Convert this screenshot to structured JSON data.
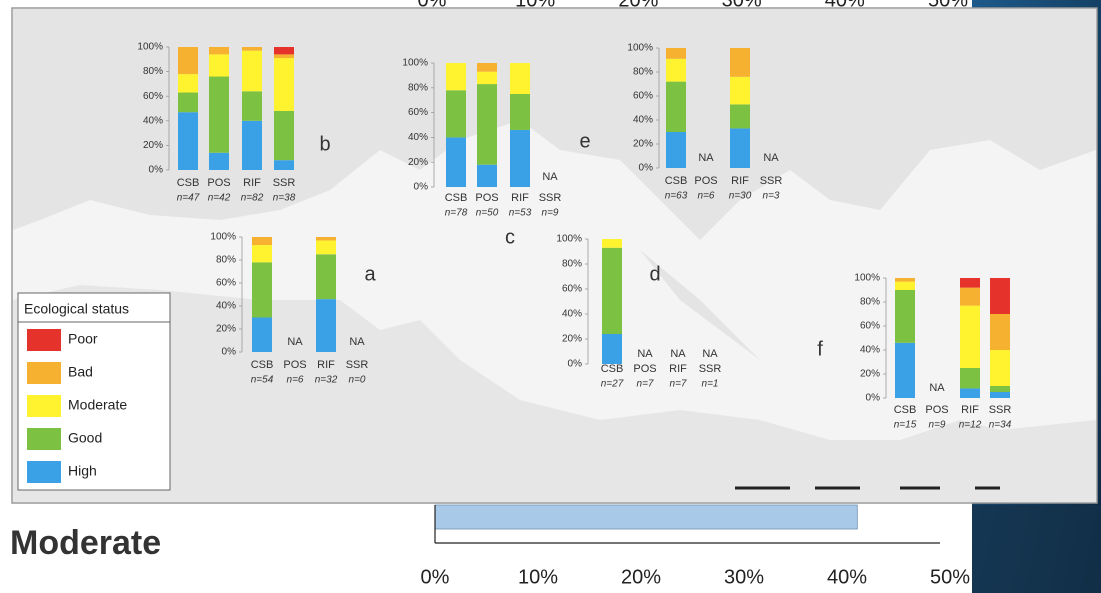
{
  "legend": {
    "title": "Ecological status"
  },
  "chart_data": [
    {
      "type": "stacked-bar",
      "label": "a",
      "categories": [
        "CSB",
        "POS",
        "RIF",
        "SSR"
      ],
      "n_labels": [
        "n=54",
        "n=6",
        "n=32",
        "n=0"
      ],
      "na_labels": [
        null,
        "NA",
        null,
        "NA"
      ],
      "series": [
        {
          "name": "High",
          "color": "#3ba1e6",
          "values": [
            30,
            null,
            46,
            null
          ]
        },
        {
          "name": "Good",
          "color": "#7dc143",
          "values": [
            48,
            null,
            39,
            null
          ]
        },
        {
          "name": "Moderate",
          "color": "#fff22f",
          "values": [
            15,
            null,
            12,
            null
          ]
        },
        {
          "name": "Bad",
          "color": "#f6b131",
          "values": [
            7,
            null,
            3,
            null
          ]
        },
        {
          "name": "Poor",
          "color": "#e5322b",
          "values": [
            0,
            null,
            0,
            null
          ]
        }
      ],
      "ylim": [
        0,
        100
      ],
      "yticks": [
        {
          "value": 0,
          "label": "0%"
        },
        {
          "value": 20,
          "label": "20%"
        },
        {
          "value": 40,
          "label": "40%"
        },
        {
          "value": 60,
          "label": "60%"
        },
        {
          "value": 80,
          "label": "80%"
        },
        {
          "value": 100,
          "label": "100%"
        }
      ]
    },
    {
      "type": "stacked-bar",
      "label": "b",
      "categories": [
        "CSB",
        "POS",
        "RIF",
        "SSR"
      ],
      "n_labels": [
        "n=47",
        "n=42",
        "n=82",
        "n=38"
      ],
      "na_labels": [
        null,
        null,
        null,
        null
      ],
      "series": [
        {
          "name": "High",
          "color": "#3ba1e6",
          "values": [
            47,
            14,
            40,
            8
          ]
        },
        {
          "name": "Good",
          "color": "#7dc143",
          "values": [
            16,
            62,
            24,
            40
          ]
        },
        {
          "name": "Moderate",
          "color": "#fff22f",
          "values": [
            15,
            18,
            33,
            43
          ]
        },
        {
          "name": "Bad",
          "color": "#f6b131",
          "values": [
            22,
            6,
            3,
            3
          ]
        },
        {
          "name": "Poor",
          "color": "#e5322b",
          "values": [
            0,
            0,
            0,
            6
          ]
        }
      ],
      "ylim": [
        0,
        100
      ],
      "yticks": [
        {
          "value": 0,
          "label": "0%"
        },
        {
          "value": 20,
          "label": "20%"
        },
        {
          "value": 40,
          "label": "40%"
        },
        {
          "value": 60,
          "label": "60%"
        },
        {
          "value": 80,
          "label": "80%"
        },
        {
          "value": 100,
          "label": "100%"
        }
      ]
    },
    {
      "type": "stacked-bar",
      "label": "c",
      "categories": [
        "CSB",
        "POS",
        "RIF",
        "SSR"
      ],
      "n_labels": [
        "n=78",
        "n=50",
        "n=53",
        "n=9"
      ],
      "na_labels": [
        null,
        null,
        null,
        "NA"
      ],
      "series": [
        {
          "name": "High",
          "color": "#3ba1e6",
          "values": [
            40,
            18,
            46,
            null
          ]
        },
        {
          "name": "Good",
          "color": "#7dc143",
          "values": [
            38,
            65,
            29,
            null
          ]
        },
        {
          "name": "Moderate",
          "color": "#fff22f",
          "values": [
            22,
            10,
            25,
            null
          ]
        },
        {
          "name": "Bad",
          "color": "#f6b131",
          "values": [
            0,
            7,
            0,
            null
          ]
        },
        {
          "name": "Poor",
          "color": "#e5322b",
          "values": [
            0,
            0,
            0,
            null
          ]
        }
      ],
      "ylim": [
        0,
        100
      ],
      "yticks": [
        {
          "value": 0,
          "label": "0%"
        },
        {
          "value": 20,
          "label": "20%"
        },
        {
          "value": 40,
          "label": "40%"
        },
        {
          "value": 60,
          "label": "60%"
        },
        {
          "value": 80,
          "label": "80%"
        },
        {
          "value": 100,
          "label": "100%"
        }
      ]
    },
    {
      "type": "stacked-bar",
      "label": "d",
      "categories": [
        "CSB",
        "POS",
        "RIF",
        "SSR"
      ],
      "n_labels": [
        "n=27",
        "n=7",
        "n=7",
        "n=1"
      ],
      "na_labels": [
        null,
        "NA",
        "NA",
        "NA"
      ],
      "series": [
        {
          "name": "High",
          "color": "#3ba1e6",
          "values": [
            24,
            null,
            null,
            null
          ]
        },
        {
          "name": "Good",
          "color": "#7dc143",
          "values": [
            69,
            null,
            null,
            null
          ]
        },
        {
          "name": "Moderate",
          "color": "#fff22f",
          "values": [
            7,
            null,
            null,
            null
          ]
        },
        {
          "name": "Bad",
          "color": "#f6b131",
          "values": [
            0,
            null,
            null,
            null
          ]
        },
        {
          "name": "Poor",
          "color": "#e5322b",
          "values": [
            0,
            null,
            null,
            null
          ]
        }
      ],
      "ylim": [
        0,
        100
      ],
      "yticks": [
        {
          "value": 0,
          "label": "0%"
        },
        {
          "value": 20,
          "label": "20%"
        },
        {
          "value": 40,
          "label": "40%"
        },
        {
          "value": 60,
          "label": "60%"
        },
        {
          "value": 80,
          "label": "80%"
        },
        {
          "value": 100,
          "label": "100%"
        }
      ]
    },
    {
      "type": "stacked-bar",
      "label": "e",
      "categories": [
        "CSB",
        "POS",
        "RIF",
        "SSR"
      ],
      "n_labels": [
        "n=63",
        "n=6",
        "n=30",
        "n=3"
      ],
      "na_labels": [
        null,
        "NA",
        null,
        "NA"
      ],
      "series": [
        {
          "name": "High",
          "color": "#3ba1e6",
          "values": [
            30,
            null,
            33,
            null
          ]
        },
        {
          "name": "Good",
          "color": "#7dc143",
          "values": [
            42,
            null,
            20,
            null
          ]
        },
        {
          "name": "Moderate",
          "color": "#fff22f",
          "values": [
            19,
            null,
            23,
            null
          ]
        },
        {
          "name": "Bad",
          "color": "#f6b131",
          "values": [
            9,
            null,
            24,
            null
          ]
        },
        {
          "name": "Poor",
          "color": "#e5322b",
          "values": [
            0,
            null,
            0,
            null
          ]
        }
      ],
      "ylim": [
        0,
        100
      ],
      "yticks": [
        {
          "value": 0,
          "label": "0%"
        },
        {
          "value": 20,
          "label": "20%"
        },
        {
          "value": 40,
          "label": "40%"
        },
        {
          "value": 60,
          "label": "60%"
        },
        {
          "value": 80,
          "label": "80%"
        },
        {
          "value": 100,
          "label": "100%"
        }
      ]
    },
    {
      "type": "stacked-bar",
      "label": "f",
      "categories": [
        "CSB",
        "POS",
        "RIF",
        "SSR"
      ],
      "n_labels": [
        "n=15",
        "n=9",
        "n=12",
        "n=34"
      ],
      "na_labels": [
        null,
        "NA",
        null,
        null
      ],
      "series": [
        {
          "name": "High",
          "color": "#3ba1e6",
          "values": [
            46,
            null,
            8,
            5
          ]
        },
        {
          "name": "Good",
          "color": "#7dc143",
          "values": [
            44,
            null,
            17,
            5
          ]
        },
        {
          "name": "Moderate",
          "color": "#fff22f",
          "values": [
            7,
            null,
            52,
            30
          ]
        },
        {
          "name": "Bad",
          "color": "#f6b131",
          "values": [
            3,
            null,
            15,
            30
          ]
        },
        {
          "name": "Poor",
          "color": "#e5322b",
          "values": [
            0,
            null,
            8,
            30
          ]
        }
      ],
      "ylim": [
        0,
        100
      ],
      "yticks": [
        {
          "value": 0,
          "label": "0%"
        },
        {
          "value": 20,
          "label": "20%"
        },
        {
          "value": 40,
          "label": "40%"
        },
        {
          "value": 60,
          "label": "60%"
        },
        {
          "value": 80,
          "label": "80%"
        },
        {
          "value": 100,
          "label": "100%"
        }
      ]
    },
    {
      "type": "axis",
      "xlim": [
        0,
        50
      ],
      "xticks": [
        {
          "value": 0,
          "label": "0%"
        },
        {
          "value": 10,
          "label": "10%"
        },
        {
          "value": 20,
          "label": "20%"
        },
        {
          "value": 30,
          "label": "30%"
        },
        {
          "value": 40,
          "label": "40%"
        },
        {
          "value": 50,
          "label": "50%"
        }
      ]
    },
    {
      "type": "hbar",
      "categories": [
        "Moderate"
      ],
      "values": [
        41
      ],
      "color": "#a9c9e8",
      "xlim": [
        0,
        50
      ],
      "xticks": [
        {
          "value": 0,
          "label": "0%"
        },
        {
          "value": 10,
          "label": "10%"
        },
        {
          "value": 20,
          "label": "20%"
        },
        {
          "value": 30,
          "label": "30%"
        },
        {
          "value": 40,
          "label": "40%"
        },
        {
          "value": 50,
          "label": "50%"
        }
      ]
    }
  ]
}
